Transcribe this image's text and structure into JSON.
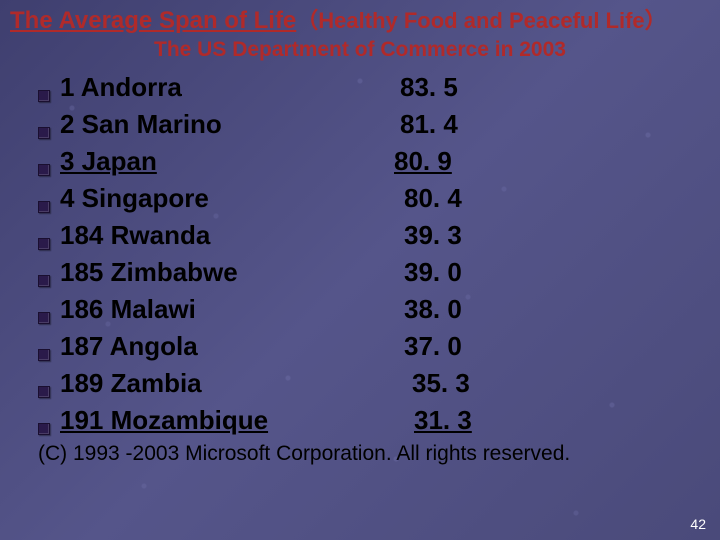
{
  "title_main": "The Average Span of Life",
  "title_sub": "（Healthy Food and Peaceful Life）",
  "subtitle": "The US Department of Commerce in 2003",
  "rows": [
    {
      "label": "1 Andorra",
      "value": "83. 5",
      "underline": false
    },
    {
      "label": "2 San Marino",
      "value": "81. 4",
      "underline": false
    },
    {
      "label": "3 Japan",
      "value": "80. 9",
      "underline": true
    },
    {
      "label": "4 Singapore",
      "value": "80. 4",
      "underline": false
    },
    {
      "label": "184 Rwanda",
      "value": "39. 3",
      "underline": false
    },
    {
      "label": "185 Zimbabwe",
      "value": "39. 0",
      "underline": false
    },
    {
      "label": "186 Malawi",
      "value": "38. 0",
      "underline": false
    },
    {
      "label": "187 Angola",
      "value": "37. 0",
      "underline": false
    },
    {
      "label": "189 Zambia",
      "value": "35. 3",
      "underline": false
    },
    {
      "label": "191 Mozambique",
      "value": "31. 3",
      "underline": true
    }
  ],
  "value_offsets": [
    0,
    0,
    -6,
    4,
    4,
    4,
    4,
    4,
    12,
    14
  ],
  "copyright": "(C) 1993 -2003 Microsoft Corporation. All rights reserved.",
  "page_number": "42",
  "colors": {
    "title": "#b02a2a",
    "text": "#000000",
    "pagenum": "#ffffff",
    "bullet": "#2a1a4a",
    "background": "#4a4a7a"
  },
  "fonts": {
    "title_main_pt": 24,
    "title_sub_pt": 22,
    "subtitle_pt": 21,
    "row_pt": 26,
    "copyright_pt": 21,
    "pagenum_pt": 14,
    "family": "Arial"
  }
}
